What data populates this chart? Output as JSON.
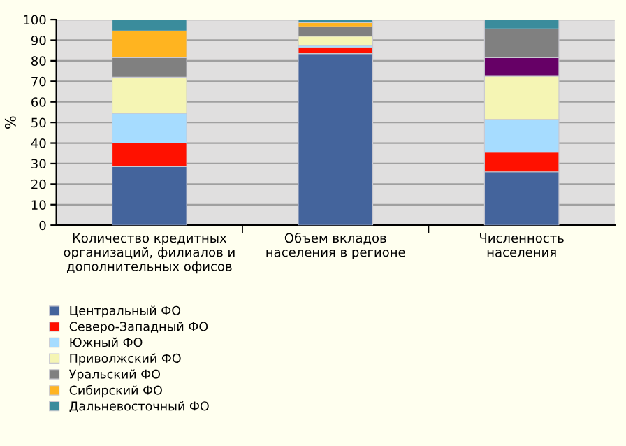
{
  "chart_data": {
    "type": "bar",
    "stacked": true,
    "ylabel": "%",
    "categories": [
      "Количество кредитных\nорганизаций, филиалов и\nдополнительных офисов",
      "Объем вкладов\nнаселения в регионе",
      "Численность\nнаселения"
    ],
    "series": [
      {
        "name": "Центральный ФО",
        "color": "#44649c",
        "values": [
          28.5,
          83.5,
          26
        ]
      },
      {
        "name": "Северо-Западный ФО",
        "color": "#ff1100",
        "values": [
          11.5,
          3,
          9.5
        ]
      },
      {
        "name": "Южный ФО",
        "color": "#a6dcff",
        "values": [
          14.5,
          1,
          16
        ]
      },
      {
        "name": "Приволжский ФО",
        "color": "#f5f5b4",
        "values": [
          17.5,
          4.5,
          21
        ]
      },
      {
        "name": "Уральский ФО",
        "color": "#808080",
        "colors": [
          "#808080",
          "#808080",
          "#660066"
        ],
        "values": [
          9.5,
          4.5,
          9
        ]
      },
      {
        "name": "Сибирский ФО",
        "color": "#ffb420",
        "colors": [
          "#ffb420",
          "#ffb420",
          "#808080"
        ],
        "values": [
          13,
          2,
          14
        ]
      },
      {
        "name": "Дальневосточный ФО",
        "color": "#3a8c9c",
        "values": [
          5.5,
          1.5,
          4.5
        ]
      }
    ],
    "ylim": [
      0,
      100
    ],
    "yticks": [
      0,
      10,
      20,
      30,
      40,
      50,
      60,
      70,
      80,
      90,
      100
    ],
    "grid": "y",
    "legend": "bottom left"
  }
}
